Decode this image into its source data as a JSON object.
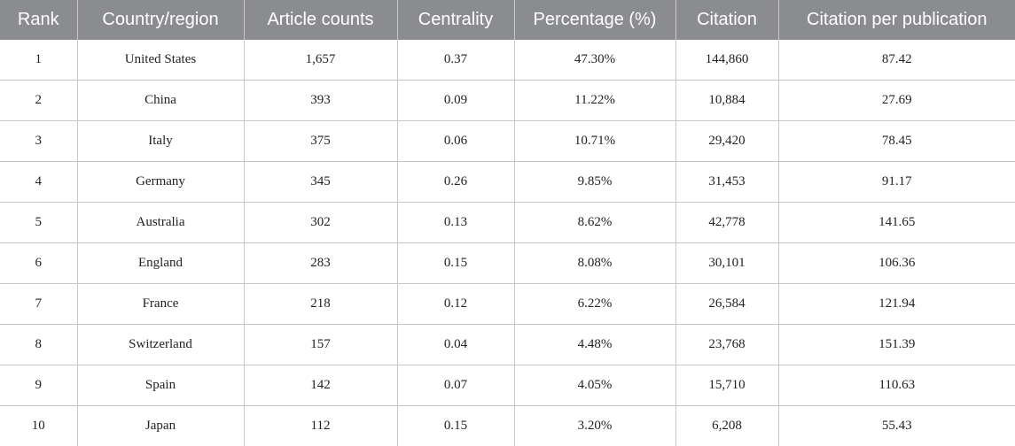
{
  "table": {
    "columns": [
      "Rank",
      "Country/region",
      "Article counts",
      "Centrality",
      "Percentage (%)",
      "Citation",
      "Citation per publication"
    ],
    "rows": [
      [
        "1",
        "United States",
        "1,657",
        "0.37",
        "47.30%",
        "144,860",
        "87.42"
      ],
      [
        "2",
        "China",
        "393",
        "0.09",
        "11.22%",
        "10,884",
        "27.69"
      ],
      [
        "3",
        "Italy",
        "375",
        "0.06",
        "10.71%",
        "29,420",
        "78.45"
      ],
      [
        "4",
        "Germany",
        "345",
        "0.26",
        "9.85%",
        "31,453",
        "91.17"
      ],
      [
        "5",
        "Australia",
        "302",
        "0.13",
        "8.62%",
        "42,778",
        "141.65"
      ],
      [
        "6",
        "England",
        "283",
        "0.15",
        "8.08%",
        "30,101",
        "106.36"
      ],
      [
        "7",
        "France",
        "218",
        "0.12",
        "6.22%",
        "26,584",
        "121.94"
      ],
      [
        "8",
        "Switzerland",
        "157",
        "0.04",
        "4.48%",
        "23,768",
        "151.39"
      ],
      [
        "9",
        "Spain",
        "142",
        "0.07",
        "4.05%",
        "15,710",
        "110.63"
      ],
      [
        "10",
        "Japan",
        "112",
        "0.15",
        "3.20%",
        "6,208",
        "55.43"
      ]
    ]
  }
}
